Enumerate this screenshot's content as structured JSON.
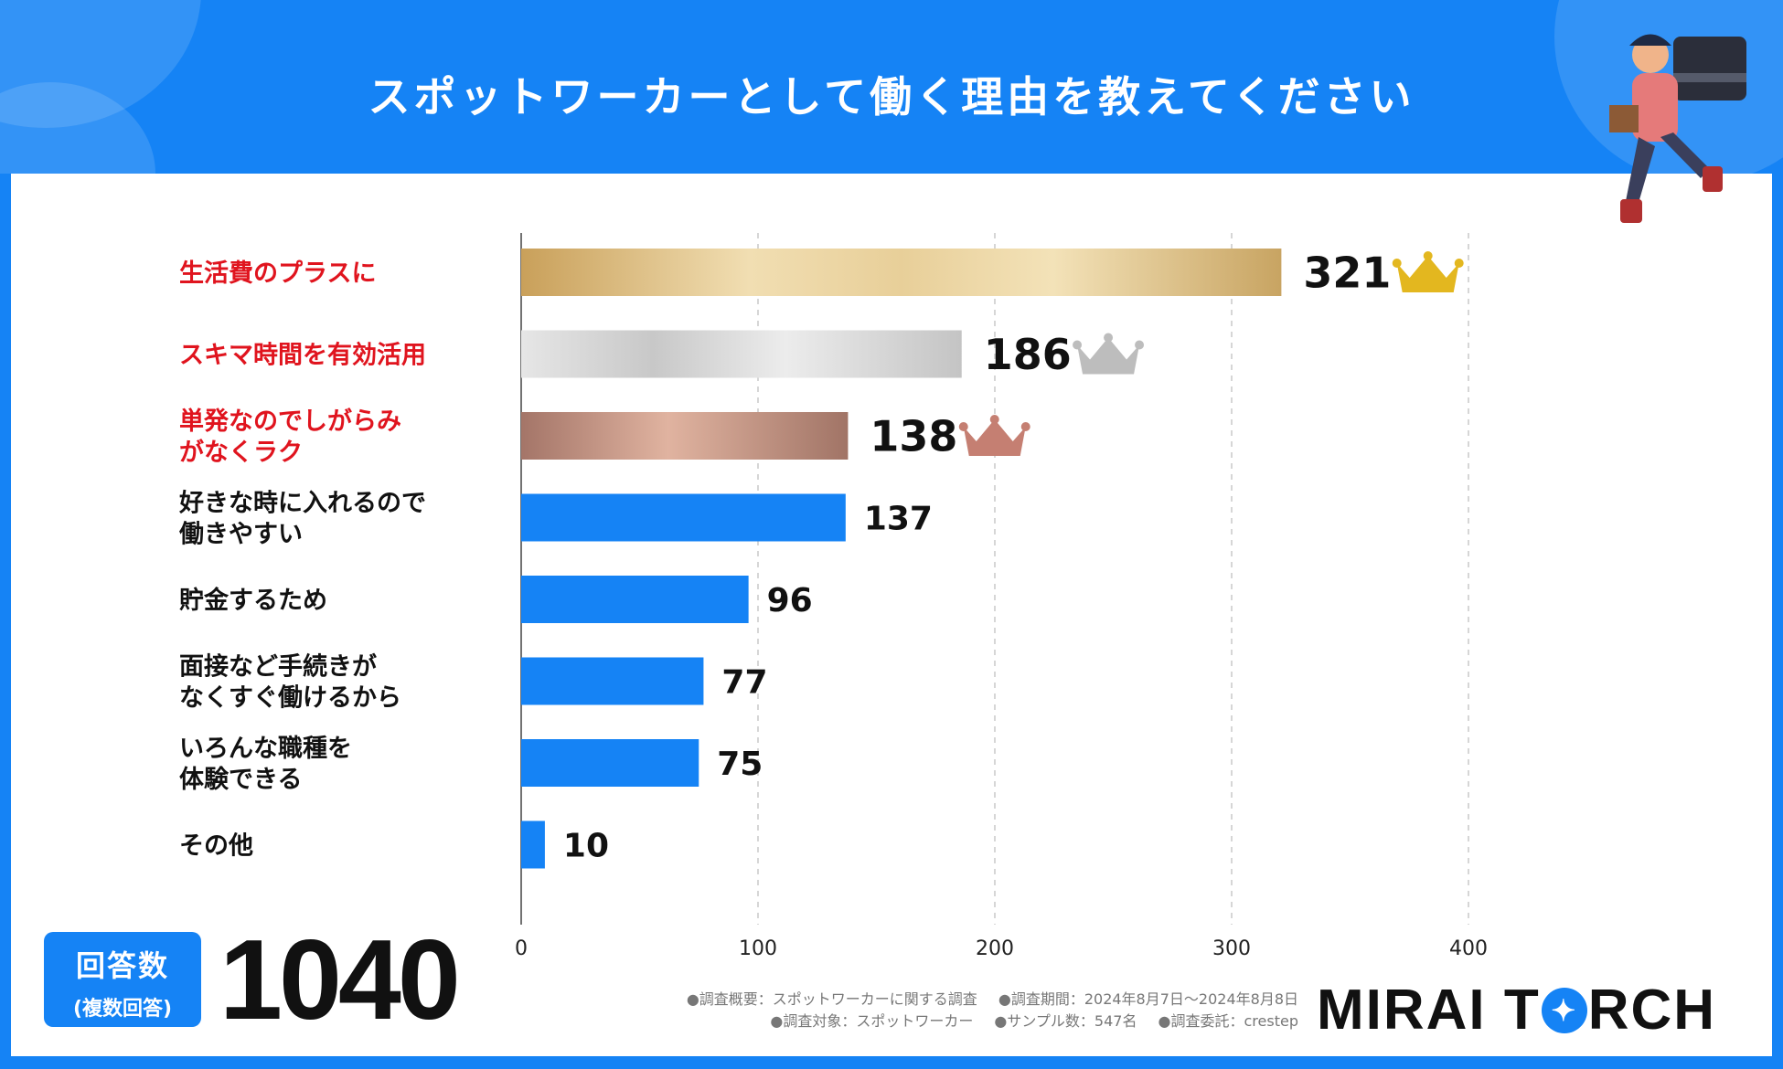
{
  "title": "スポットワーカーとして働く理由を教えてください",
  "total": {
    "label": "回答数",
    "sublabel": "(複数回答)",
    "value": "1040"
  },
  "notes": {
    "line1": [
      "●調査概要：スポットワーカーに関する調査",
      "●調査期間：2024年8月7日～2024年8月8日"
    ],
    "line2": [
      "●調査対象：スポットワーカー",
      "●サンプル数：547名",
      "●調査委託：crestep"
    ]
  },
  "logo": {
    "part1": "MIRAI T",
    "part2": "RCH",
    "star": "✦"
  },
  "colors": {
    "accent": "#1583f5",
    "highlight": "#e0141e",
    "gold": "#d8a93a",
    "silver": "#c7c7c7",
    "bronze": "#c98a7a"
  },
  "chart_data": {
    "type": "bar",
    "orientation": "horizontal",
    "title": "スポットワーカーとして働く理由を教えてください",
    "categories": [
      "生活費のプラスに",
      "スキマ時間を有効活用",
      "単発なのでしがらみ\nがなくラク",
      "好きな時に入れるので\n働きやすい",
      "貯金するため",
      "面接など手続きが\nなくすぐ働けるから",
      "いろんな職種を\n体験できる",
      "その他"
    ],
    "values": [
      321,
      186,
      138,
      137,
      96,
      77,
      75,
      10
    ],
    "xlim": [
      0,
      400
    ],
    "xticks": [
      0,
      100,
      200,
      300,
      400
    ],
    "grid": true,
    "rank_marks": [
      "gold",
      "silver",
      "bronze"
    ]
  }
}
